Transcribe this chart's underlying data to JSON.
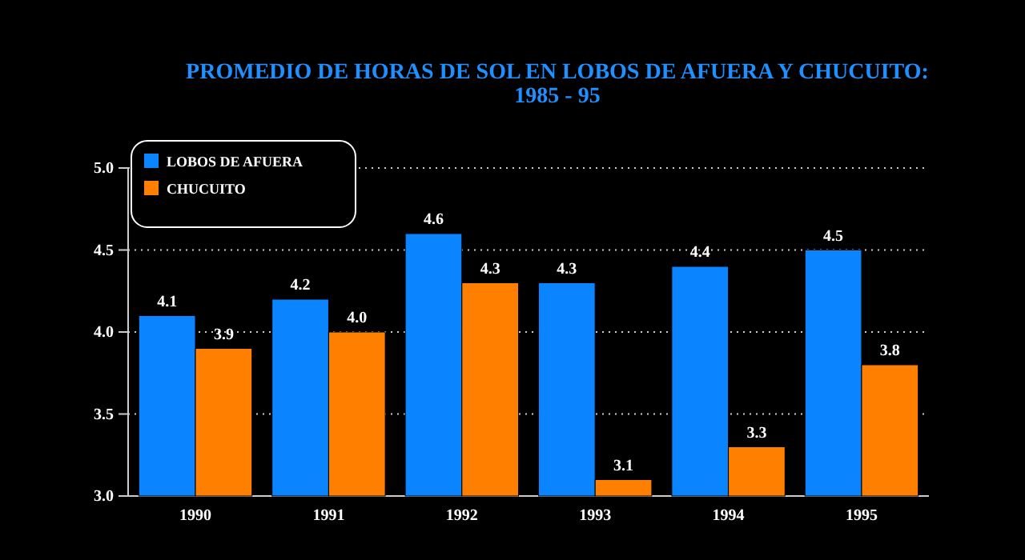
{
  "chart_data": {
    "type": "bar",
    "title": "PROMEDIO DE HORAS DE SOL EN LOBOS DE AFUERA Y CHUCUITO: 1985 - 95",
    "categories": [
      "1990",
      "1991",
      "1992",
      "1993",
      "1994",
      "1995"
    ],
    "series": [
      {
        "name": "LOBOS DE AFUERA",
        "color": "#0a84ff",
        "values": [
          4.1,
          4.2,
          4.6,
          4.3,
          4.4,
          4.5
        ],
        "value_labels": [
          "4.1",
          "4.2",
          "4.6",
          "4.3",
          "4.4",
          "4.5"
        ]
      },
      {
        "name": "CHUCUITO",
        "color": "#ff8000",
        "values": [
          3.9,
          4.0,
          4.3,
          3.1,
          3.3,
          3.8
        ],
        "value_labels": [
          "3.9",
          "4.0",
          "4.3",
          "3.1",
          "3.3",
          "3.8"
        ]
      }
    ],
    "ylim": [
      3,
      5
    ],
    "yticks": [
      {
        "value": 3,
        "label": "3.0"
      },
      {
        "value": 3.5,
        "label": "3.5"
      },
      {
        "value": 4,
        "label": "4.0"
      },
      {
        "value": 4.5,
        "label": "4.5"
      },
      {
        "value": 5,
        "label": "5.0"
      }
    ],
    "grid": "y",
    "legend": "top left"
  }
}
